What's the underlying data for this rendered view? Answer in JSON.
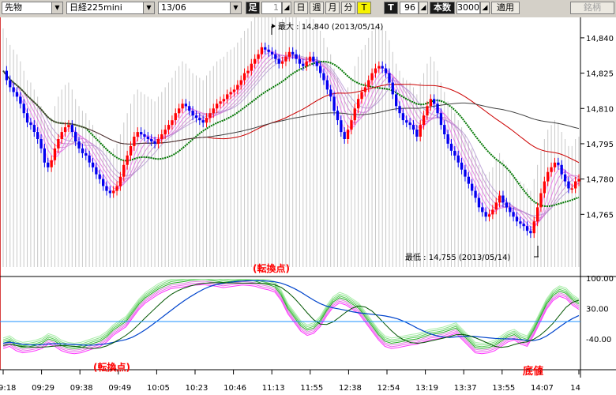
{
  "toolbar": {
    "market_select": "先物",
    "symbol_select": "日経225mini",
    "date_select": "13/06",
    "period_label": "足",
    "interval_value": "1",
    "interval_units": [
      "日",
      "週",
      "月",
      "分"
    ],
    "tick_button": "T",
    "tick_mode_label": "T",
    "count_value": "96",
    "count_unit_label": "本数",
    "bars_value": "3000",
    "apply_button": "適用",
    "watchlist_button": "銘柄"
  },
  "chart_data": {
    "type": "candlestick",
    "price_axis_ticks": [
      "14,840",
      "14,825",
      "14,810",
      "14,795",
      "14,780",
      "14,765"
    ],
    "price_range": [
      14750,
      14845
    ],
    "oscillator_axis_ticks": [
      "100.00",
      "30.00",
      "-40.00"
    ],
    "oscillator_range": [
      -100,
      100
    ],
    "oscillator_reference_level": 0,
    "time_ticks": [
      "09:18",
      "09:29",
      "09:38",
      "09:49",
      "10:05",
      "10:23",
      "10:46",
      "11:13",
      "11:55",
      "12:38",
      "12:54",
      "13:19",
      "13:37",
      "13:55",
      "14:07",
      "14"
    ],
    "max_annotation": "最大 : 14,840 (2013/05/14)",
    "max": {
      "price": 14840,
      "date": "2013/05/14"
    },
    "min_annotation": "最低 : 14,755 (2013/05/14)",
    "min": {
      "price": 14755,
      "date": "2013/05/14"
    },
    "annotations": [
      "(転換点)",
      "(転換点)",
      "底値"
    ],
    "price_close": [
      14826,
      14822,
      14819,
      14817,
      14815,
      14812,
      14808,
      14804,
      14803,
      14800,
      14797,
      14793,
      14787,
      14785,
      14788,
      14793,
      14797,
      14800,
      14802,
      14803,
      14800,
      14796,
      14793,
      14791,
      14790,
      14787,
      14785,
      14782,
      14780,
      14777,
      14775,
      14774,
      14775,
      14777,
      14781,
      14786,
      14790,
      14794,
      14798,
      14800,
      14799,
      14798,
      14797,
      14796,
      14795,
      14797,
      14799,
      14801,
      14803,
      14805,
      14808,
      14810,
      14812,
      14811,
      14809,
      14807,
      14806,
      14805,
      14804,
      14806,
      14808,
      14810,
      14812,
      14813,
      14814,
      14816,
      14817,
      14818,
      14820,
      14822,
      14825,
      14826,
      14829,
      14831,
      14833,
      14836,
      14835,
      14834,
      14833,
      14831,
      14829,
      14830,
      14832,
      14834,
      14833,
      14831,
      14829,
      14828,
      14830,
      14832,
      14830,
      14828,
      14825,
      14822,
      14818,
      14815,
      14809,
      14805,
      14800,
      14797,
      14801,
      14805,
      14810,
      14814,
      14817,
      14819,
      14822,
      14825,
      14827,
      14828,
      14827,
      14825,
      14821,
      14816,
      14811,
      14808,
      14805,
      14804,
      14803,
      14801,
      14798,
      14803,
      14807,
      14811,
      14814,
      14812,
      14808,
      14803,
      14799,
      14795,
      14792,
      14790,
      14787,
      14784,
      14781,
      14778,
      14775,
      14772,
      14768,
      14766,
      14764,
      14765,
      14767,
      14770,
      14773,
      14770,
      14768,
      14766,
      14764,
      14762,
      14761,
      14760,
      14758,
      14757,
      14762,
      14768,
      14774,
      14779,
      14783,
      14785,
      14787,
      14786,
      14782,
      14779,
      14776,
      14776,
      14779,
      14780
    ],
    "oscillator_series_values": [
      -50,
      -45,
      -55,
      -60,
      -58,
      -55,
      -50,
      -40,
      -45,
      -55,
      -60,
      -62,
      -60,
      -55,
      -50,
      -45,
      -35,
      -20,
      -10,
      0,
      20,
      40,
      55,
      65,
      75,
      82,
      88,
      90,
      92,
      95,
      96,
      97,
      95,
      93,
      90,
      92,
      94,
      96,
      95,
      93,
      88,
      85,
      80,
      60,
      30,
      10,
      -10,
      -20,
      -15,
      0,
      25,
      45,
      55,
      50,
      40,
      30,
      10,
      -10,
      -30,
      -45,
      -50,
      -48,
      -45,
      -42,
      -40,
      -35,
      -30,
      -28,
      -25,
      -20,
      -15,
      -30,
      -45,
      -60,
      -62,
      -60,
      -55,
      -45,
      -35,
      -30,
      -40,
      -45,
      -20,
      10,
      40,
      60,
      70,
      65,
      50,
      40
    ]
  }
}
